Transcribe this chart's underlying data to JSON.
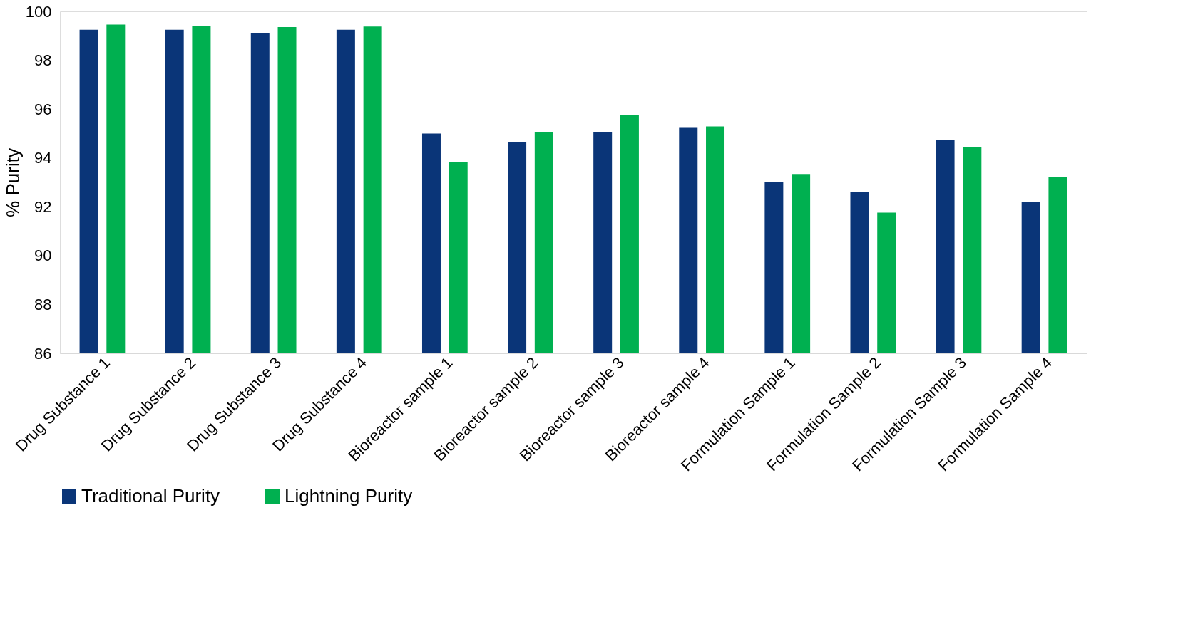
{
  "chart_data": {
    "type": "bar",
    "ylabel": "% Purity",
    "categories": [
      "Drug Substance 1",
      "Drug Substance 2",
      "Drug Substance 3",
      "Drug Substance 4",
      "Bioreactor sample 1",
      "Bioreactor sample 2",
      "Bioreactor sample 3",
      "Bioreactor sample 4",
      "Formulation Sample 1",
      "Formulation Sample 2",
      "Formulation Sample 3",
      "Formulation Sample 4"
    ],
    "series": [
      {
        "name": "Traditional Purity",
        "color": "#0a3578",
        "values": [
          99.25,
          99.25,
          99.12,
          99.25,
          95.0,
          94.65,
          95.07,
          95.26,
          93.01,
          92.61,
          94.75,
          92.18
        ]
      },
      {
        "name": "Lightning Purity",
        "color": "#00b050",
        "values": [
          99.46,
          99.41,
          99.36,
          99.38,
          93.84,
          95.07,
          95.74,
          95.29,
          93.34,
          91.76,
          94.46,
          93.23
        ]
      }
    ],
    "ylim": [
      86,
      100
    ],
    "yticks": [
      86,
      88,
      90,
      92,
      94,
      96,
      98,
      100
    ],
    "grid": false,
    "legend": "bottom"
  }
}
